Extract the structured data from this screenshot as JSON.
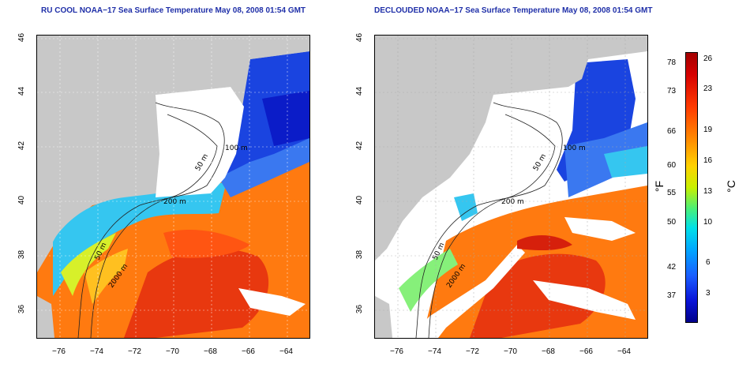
{
  "panels": [
    {
      "title": "RU COOL NOAA−17 Sea Surface Temperature May 08, 2008 01:54 GMT",
      "contour_labels": [
        "50 m",
        "100 m",
        "200 m",
        "50 m",
        "2000 m"
      ]
    },
    {
      "title": "DECLOUDED NOAA−17 Sea Surface Temperature May 08, 2008 01:54 GMT",
      "contour_labels": [
        "50 m",
        "100 m",
        "200 m",
        "50 m",
        "2000 m"
      ]
    }
  ],
  "axes": {
    "x_ticks": [
      "−76",
      "−74",
      "−72",
      "−70",
      "−68",
      "−66",
      "−64"
    ],
    "y_ticks": [
      "46",
      "44",
      "42",
      "40",
      "38",
      "36"
    ]
  },
  "colorbar": {
    "fahrenheit_label": "°F",
    "celsius_label": "°C",
    "fahrenheit_ticks": [
      "78",
      "73",
      "66",
      "60",
      "55",
      "50",
      "42",
      "37"
    ],
    "celsius_ticks": [
      "26",
      "23",
      "19",
      "16",
      "13",
      "10",
      "6",
      "3"
    ]
  },
  "colors": {
    "title": "#1f2fa8",
    "land": "#c8c8c8",
    "cloud": "#ffffff",
    "warm": "#e63a12",
    "cold": "#1a3ce0"
  }
}
